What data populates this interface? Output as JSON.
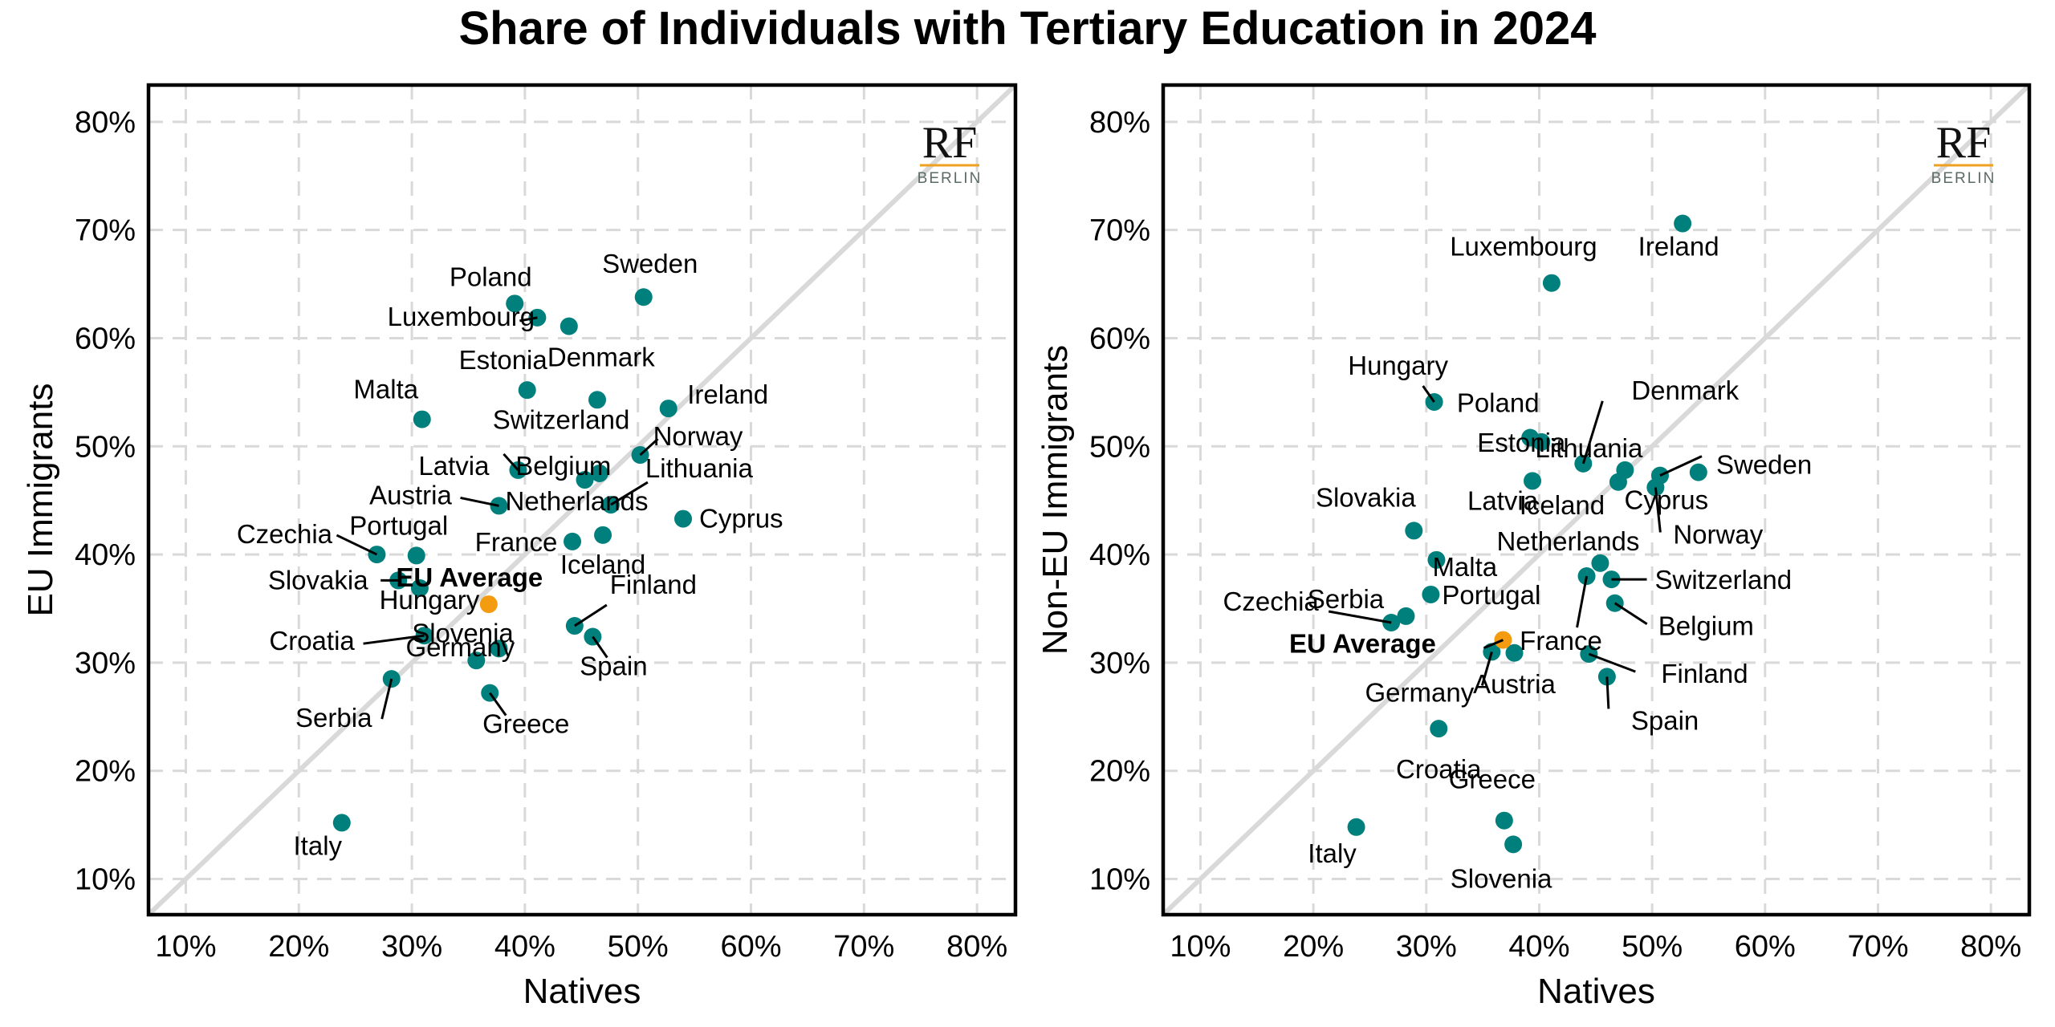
{
  "chart_data": {
    "title": "Share of Individuals with Tertiary Education in 2024",
    "logo": {
      "main": "RF",
      "sub": "BERLIN",
      "accent_color": "#f0a020"
    },
    "colors": {
      "country": "#00807c",
      "average": "#f39c12",
      "diagonal": "#d9d9d9"
    },
    "panels": [
      {
        "type": "scatter",
        "xlabel": "Natives",
        "ylabel": "EU Immigrants",
        "xlim": [
          6.7,
          83.4
        ],
        "ylim": [
          6.7,
          83.4
        ],
        "xticks": [
          10,
          20,
          30,
          40,
          50,
          60,
          70,
          80
        ],
        "yticks": [
          10,
          20,
          30,
          40,
          50,
          60,
          70,
          80
        ],
        "tick_format": "{v}%",
        "grid": true,
        "reference_line": "y = x",
        "points": [
          {
            "label": "Poland",
            "x": 39.1,
            "y": 63.2
          },
          {
            "label": "Luxembourg",
            "x": 41.1,
            "y": 61.9
          },
          {
            "label": "Denmark",
            "x": 43.9,
            "y": 61.1
          },
          {
            "label": "Sweden",
            "x": 50.5,
            "y": 63.8
          },
          {
            "label": "Estonia",
            "x": 40.2,
            "y": 55.2
          },
          {
            "label": "Malta",
            "x": 30.9,
            "y": 52.5
          },
          {
            "label": "Switzerland",
            "x": 46.4,
            "y": 54.3
          },
          {
            "label": "Ireland",
            "x": 52.7,
            "y": 53.5
          },
          {
            "label": "Norway",
            "x": 50.2,
            "y": 49.2
          },
          {
            "label": "Latvia",
            "x": 39.4,
            "y": 47.8
          },
          {
            "label": "Belgium",
            "x": 46.6,
            "y": 47.5
          },
          {
            "label": "Netherlands",
            "x": 45.3,
            "y": 46.9
          },
          {
            "label": "Lithuania",
            "x": 47.6,
            "y": 44.6
          },
          {
            "label": "Austria",
            "x": 37.7,
            "y": 44.5
          },
          {
            "label": "Cyprus",
            "x": 54.0,
            "y": 43.3
          },
          {
            "label": "France",
            "x": 44.2,
            "y": 41.2
          },
          {
            "label": "Iceland",
            "x": 46.9,
            "y": 41.8
          },
          {
            "label": "Czechia",
            "x": 26.9,
            "y": 40.0
          },
          {
            "label": "Portugal",
            "x": 30.4,
            "y": 39.9
          },
          {
            "label": "Slovakia",
            "x": 28.8,
            "y": 37.6
          },
          {
            "label": "Hungary",
            "x": 30.7,
            "y": 36.9
          },
          {
            "label": "EU Average",
            "x": 36.8,
            "y": 35.4,
            "highlight": true
          },
          {
            "label": "Slovenia",
            "x": 37.7,
            "y": 31.3
          },
          {
            "label": "Finland",
            "x": 44.4,
            "y": 33.4
          },
          {
            "label": "Spain",
            "x": 46.0,
            "y": 32.4
          },
          {
            "label": "Croatia",
            "x": 31.1,
            "y": 32.5
          },
          {
            "label": "Germany",
            "x": 35.7,
            "y": 30.2
          },
          {
            "label": "Serbia",
            "x": 28.2,
            "y": 28.5
          },
          {
            "label": "Greece",
            "x": 36.9,
            "y": 27.2
          },
          {
            "label": "Italy",
            "x": 23.8,
            "y": 15.2
          }
        ]
      },
      {
        "type": "scatter",
        "xlabel": "Natives",
        "ylabel": "Non-EU Immigrants",
        "xlim": [
          6.7,
          83.4
        ],
        "ylim": [
          6.7,
          83.4
        ],
        "xticks": [
          10,
          20,
          30,
          40,
          50,
          60,
          70,
          80
        ],
        "yticks": [
          10,
          20,
          30,
          40,
          50,
          60,
          70,
          80
        ],
        "tick_format": "{v}%",
        "grid": true,
        "reference_line": "y = x",
        "points": [
          {
            "label": "Ireland",
            "x": 52.7,
            "y": 70.6
          },
          {
            "label": "Luxembourg",
            "x": 41.1,
            "y": 65.1
          },
          {
            "label": "Hungary",
            "x": 30.7,
            "y": 54.1
          },
          {
            "label": "Poland",
            "x": 39.2,
            "y": 50.8
          },
          {
            "label": "Estonia",
            "x": 40.2,
            "y": 50.4
          },
          {
            "label": "Denmark",
            "x": 43.9,
            "y": 48.4
          },
          {
            "label": "Latvia",
            "x": 39.4,
            "y": 46.8
          },
          {
            "label": "Lithuania",
            "x": 47.6,
            "y": 47.8
          },
          {
            "label": "Iceland",
            "x": 47.0,
            "y": 46.7
          },
          {
            "label": "Sweden",
            "x": 50.7,
            "y": 47.3
          },
          {
            "label": "Norway",
            "x": 50.3,
            "y": 46.2
          },
          {
            "label": "Cyprus",
            "x": 54.1,
            "y": 47.6
          },
          {
            "label": "Slovakia",
            "x": 28.9,
            "y": 42.2
          },
          {
            "label": "Malta",
            "x": 30.9,
            "y": 39.5
          },
          {
            "label": "Netherlands",
            "x": 45.4,
            "y": 39.2
          },
          {
            "label": "France",
            "x": 44.2,
            "y": 38.0
          },
          {
            "label": "Switzerland",
            "x": 46.4,
            "y": 37.7
          },
          {
            "label": "Belgium",
            "x": 46.7,
            "y": 35.5
          },
          {
            "label": "Portugal",
            "x": 30.4,
            "y": 36.3
          },
          {
            "label": "Serbia",
            "x": 28.2,
            "y": 34.3
          },
          {
            "label": "Czechia",
            "x": 26.9,
            "y": 33.7
          },
          {
            "label": "EU Average",
            "x": 36.8,
            "y": 32.1,
            "highlight": true
          },
          {
            "label": "Germany",
            "x": 35.8,
            "y": 31.0
          },
          {
            "label": "Austria",
            "x": 37.8,
            "y": 30.9
          },
          {
            "label": "Finland",
            "x": 44.4,
            "y": 30.8
          },
          {
            "label": "Spain",
            "x": 46.0,
            "y": 28.7
          },
          {
            "label": "Croatia",
            "x": 31.1,
            "y": 23.9
          },
          {
            "label": "Greece",
            "x": 36.9,
            "y": 15.4
          },
          {
            "label": "Slovenia",
            "x": 37.7,
            "y": 13.2
          },
          {
            "label": "Italy",
            "x": 23.8,
            "y": 14.8
          }
        ]
      }
    ]
  }
}
